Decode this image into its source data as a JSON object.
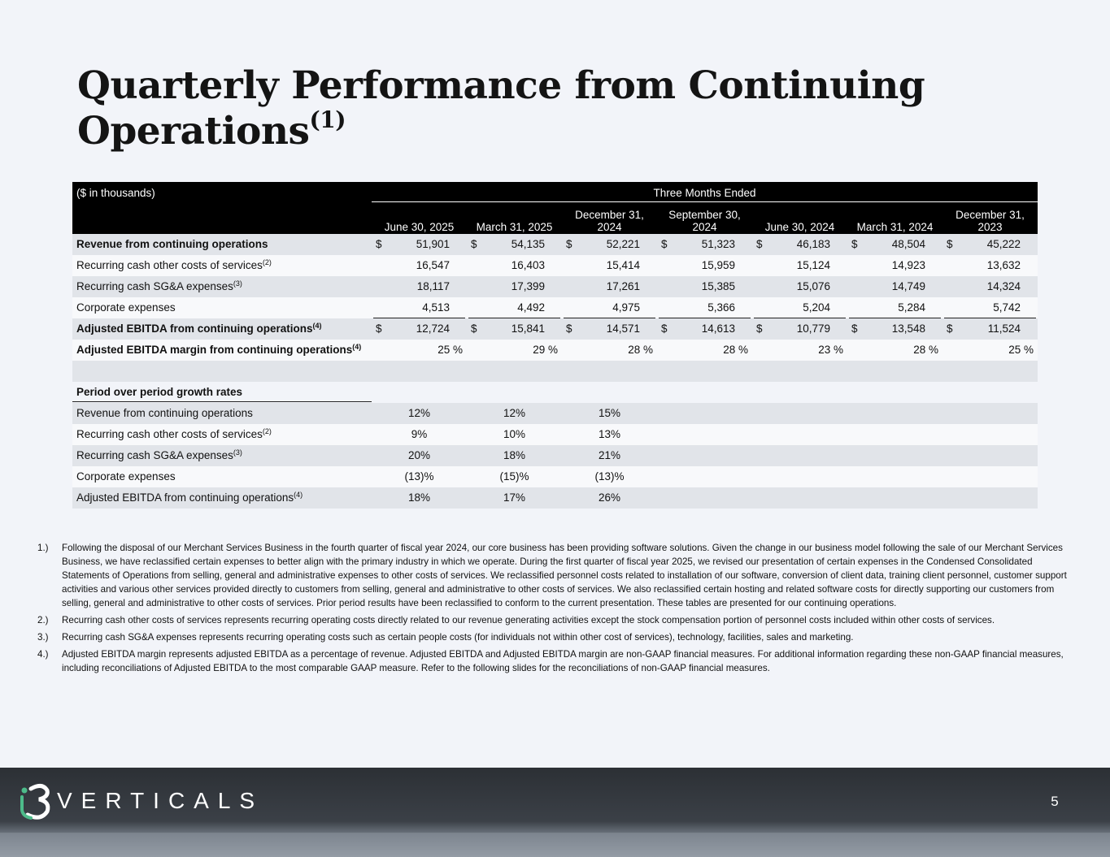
{
  "title": "Quarterly Performance from Continuing Operations",
  "title_note": "(1)",
  "table": {
    "unit_label": "($ in thousands)",
    "group_header": "Three Months Ended",
    "columns": [
      "June 30, 2025",
      "March 31, 2025",
      "December 31, 2024",
      "September 30, 2024",
      "June 30, 2024",
      "March 31, 2024",
      "December 31, 2023"
    ],
    "rows": [
      {
        "label": "Revenue from continuing operations",
        "currency": "$",
        "values": [
          "51,901",
          "54,135",
          "52,221",
          "51,323",
          "46,183",
          "48,504",
          "45,222"
        ]
      },
      {
        "label": "Recurring cash other costs of services",
        "note": "(2)",
        "values": [
          "16,547",
          "16,403",
          "15,414",
          "15,959",
          "15,124",
          "14,923",
          "13,632"
        ]
      },
      {
        "label": "Recurring cash SG&A expenses",
        "note": "(3)",
        "values": [
          "18,117",
          "17,399",
          "17,261",
          "15,385",
          "15,076",
          "14,749",
          "14,324"
        ]
      },
      {
        "label": "Corporate expenses",
        "values": [
          "4,513",
          "4,492",
          "4,975",
          "5,366",
          "5,204",
          "5,284",
          "5,742"
        ]
      },
      {
        "label": "Adjusted EBITDA from continuing operations",
        "note": "(4)",
        "currency": "$",
        "values": [
          "12,724",
          "15,841",
          "14,571",
          "14,613",
          "10,779",
          "13,548",
          "11,524"
        ]
      },
      {
        "label": "Adjusted EBITDA margin from continuing operations",
        "note": "(4)",
        "values": [
          "25 %",
          "29 %",
          "28 %",
          "28 %",
          "23 %",
          "28 %",
          "25 %"
        ]
      }
    ],
    "section_header": "Period over period growth rates",
    "growth_rows": [
      {
        "label": "Revenue from continuing operations",
        "values": [
          "12%",
          "12%",
          "15%"
        ]
      },
      {
        "label": "Recurring cash other costs of services",
        "note": "(2)",
        "values": [
          "9%",
          "10%",
          "13%"
        ]
      },
      {
        "label": "Recurring cash SG&A expenses",
        "note": "(3)",
        "values": [
          "20%",
          "18%",
          "21%"
        ]
      },
      {
        "label": "Corporate expenses",
        "values": [
          "(13)%",
          "(15)%",
          "(13)%"
        ]
      },
      {
        "label": "Adjusted EBITDA from continuing operations",
        "note": "(4)",
        "values": [
          "18%",
          "17%",
          "26%"
        ]
      }
    ]
  },
  "footnotes": [
    {
      "number": "1.)",
      "text": "Following the disposal of our Merchant Services Business in the fourth quarter of fiscal year 2024, our core business has been providing software solutions. Given the change in our business model following the sale of our Merchant Services Business, we have reclassified certain expenses to better align with the primary industry in which we operate. During the first quarter of fiscal year 2025, we revised our presentation of certain expenses in the Condensed Consolidated Statements of Operations from selling, general and administrative expenses to other costs of services. We reclassified personnel costs related to installation of our software, conversion of client data, training client personnel, customer support activities and various other services provided directly to customers from selling, general and administrative to other costs of services. We also reclassified certain hosting and related software costs for directly supporting our customers from selling, general and administrative to other costs of services. Prior period results have been reclassified to conform to the current presentation. These tables are presented for our continuing operations."
    },
    {
      "number": "2.)",
      "text": "Recurring cash other costs of services represents recurring operating costs directly related to our revenue generating activities except the stock compensation portion of personnel costs included within other costs of services."
    },
    {
      "number": "3.)",
      "text": "Recurring cash SG&A expenses represents recurring operating costs such as certain people costs (for individuals not within other cost of services), technology, facilities, sales and marketing."
    },
    {
      "number": "4.)",
      "text": "Adjusted EBITDA margin represents adjusted EBITDA as a percentage of revenue. Adjusted EBITDA and Adjusted EBITDA margin are non-GAAP financial measures. For additional information regarding these non-GAAP financial measures, including reconciliations of Adjusted EBITDA to the most comparable GAAP measure. Refer to the following slides for the reconciliations of non-GAAP financial measures."
    }
  ],
  "footer": {
    "brand": "VERTICALS",
    "page_number": "5"
  }
}
